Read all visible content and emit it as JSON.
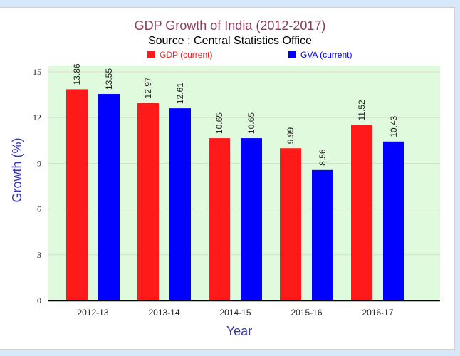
{
  "chart_data": {
    "type": "bar",
    "title": "GDP Growth of India (2012-2017)",
    "subtitle": "Source : Central Statistics Office",
    "xlabel": "Year",
    "ylabel": "Growth (%)",
    "categories": [
      "2012-13",
      "2013-14",
      "2014-15",
      "2015-16",
      "2016-17"
    ],
    "series": [
      {
        "name": "GDP (current)",
        "color": "#ff1a1a",
        "values": [
          13.86,
          12.97,
          10.65,
          9.99,
          11.52
        ]
      },
      {
        "name": "GVA (current)",
        "color": "#0000ff",
        "values": [
          13.55,
          12.61,
          10.65,
          8.56,
          10.43
        ]
      }
    ],
    "ylim": [
      0,
      15
    ],
    "yticks": [
      0,
      3,
      6,
      9,
      12,
      15
    ],
    "grid": true,
    "legend": "top",
    "data_labels": true,
    "plot_background": "#dffadc",
    "colors": {
      "title": "#8b3a5a",
      "axis_title": "#3535b5",
      "gridline": "#e0d8d0"
    }
  }
}
